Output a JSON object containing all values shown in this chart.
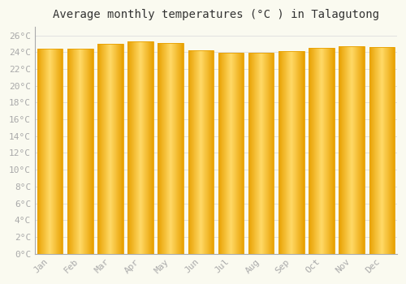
{
  "title": "Average monthly temperatures (°C ) in Talagutong",
  "months": [
    "Jan",
    "Feb",
    "Mar",
    "Apr",
    "May",
    "Jun",
    "Jul",
    "Aug",
    "Sep",
    "Oct",
    "Nov",
    "Dec"
  ],
  "values": [
    24.4,
    24.4,
    25.0,
    25.3,
    25.1,
    24.2,
    23.9,
    23.9,
    24.1,
    24.5,
    24.7,
    24.6
  ],
  "bar_color_center": "#FFD966",
  "bar_color_edge": "#E8A000",
  "background_color": "#FAFAF0",
  "grid_color": "#DDDDDD",
  "ylim": [
    0,
    27
  ],
  "ytick_step": 2,
  "title_fontsize": 10,
  "tick_fontsize": 8,
  "tick_color": "#aaaaaa",
  "font_family": "monospace",
  "bar_width": 0.85
}
